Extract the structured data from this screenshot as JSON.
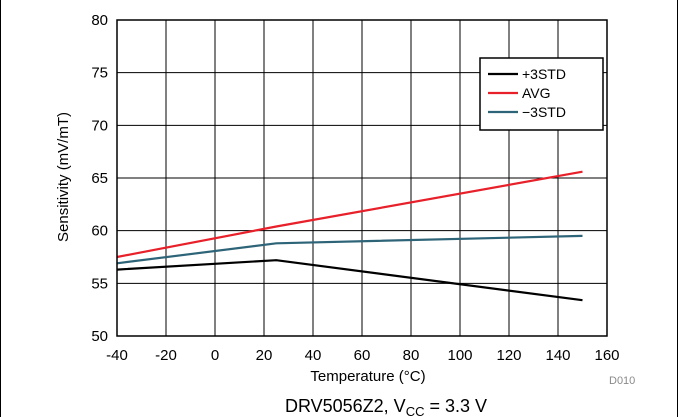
{
  "chart_data": {
    "type": "line",
    "title": "",
    "xlabel": "Temperature (°C)",
    "ylabel": "Sensitivity (mV/mT)",
    "xlim": [
      -40,
      160
    ],
    "ylim": [
      50,
      80
    ],
    "x_ticks": [
      -40,
      -20,
      0,
      20,
      40,
      60,
      80,
      100,
      120,
      140,
      160
    ],
    "y_ticks": [
      50,
      55,
      60,
      65,
      70,
      75,
      80
    ],
    "grid": true,
    "legend_position": "top-right",
    "series": [
      {
        "name": "+3STD",
        "color": "#000000",
        "x": [
          -40,
          25,
          150
        ],
        "y": [
          56.3,
          57.2,
          53.4
        ]
      },
      {
        "name": "AVG",
        "color": "#e8202a",
        "x": [
          -40,
          25,
          150
        ],
        "y": [
          57.5,
          60.4,
          65.6
        ]
      },
      {
        "name": "−3STD",
        "color": "#2e6478",
        "x": [
          -40,
          25,
          150
        ],
        "y": [
          56.9,
          58.8,
          59.5
        ]
      }
    ],
    "annotation": "D010",
    "caption": {
      "prefix": "DRV5056Z2, V",
      "subscript": "CC",
      "suffix": " = 3.3 V"
    }
  }
}
